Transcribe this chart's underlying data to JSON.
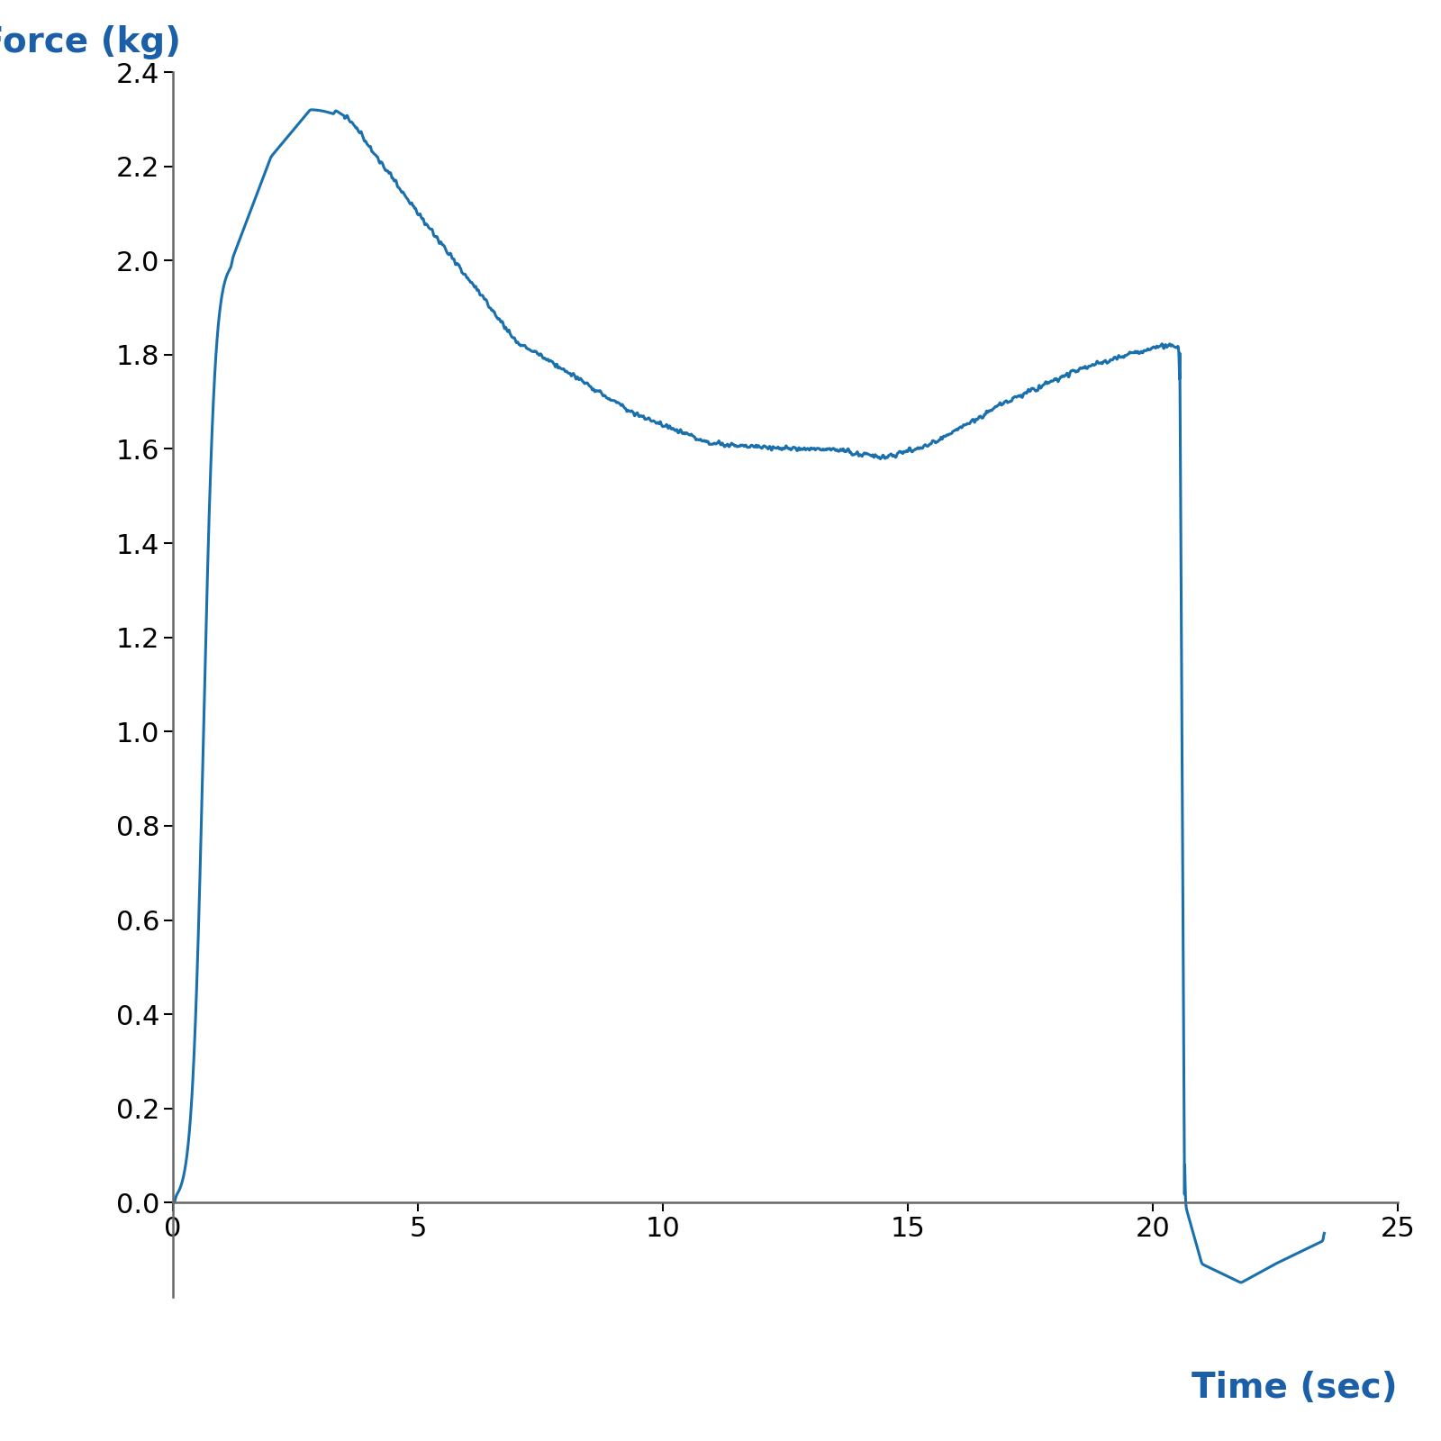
{
  "xlabel": "Time (sec)",
  "ylabel": "Force (kg)",
  "xlabel_color": "#1a5fa8",
  "ylabel_color": "#1a5fa8",
  "line_color": "#1a6fad",
  "line_width": 2.2,
  "xlim": [
    0,
    25
  ],
  "ylim": [
    -0.2,
    2.4
  ],
  "xticks": [
    0,
    5,
    10,
    15,
    20,
    25
  ],
  "yticks": [
    0.0,
    0.2,
    0.4,
    0.6,
    0.8,
    1.0,
    1.2,
    1.4,
    1.6,
    1.8,
    2.0,
    2.2,
    2.4
  ],
  "background_color": "#ffffff",
  "axis_color": "#666666",
  "tick_label_fontsize": 22,
  "axis_label_fontsize": 28,
  "label_fontweight": "bold"
}
